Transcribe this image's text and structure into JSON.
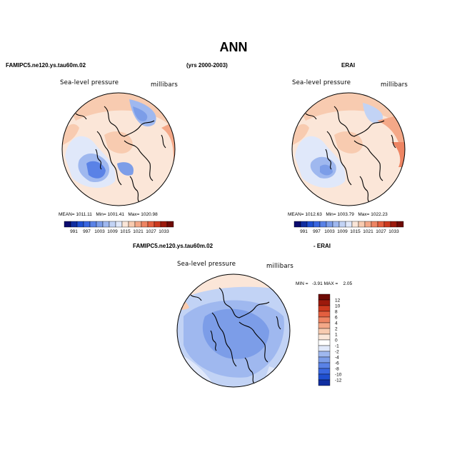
{
  "header": {
    "title": "ANN",
    "left_case": "FAMIPC5.ne120.ys.tau60m.02",
    "years": "(yrs 2000-2003)",
    "right_case": "ERAI",
    "bottom_left_case": "FAMIPC5.ne120.ys.tau60m.02",
    "bottom_right_case": "- ERAI"
  },
  "chart_data": [
    {
      "type": "heatmap",
      "projection": "polar-stereographic",
      "title": "FAMIPC5.ne120.ys.tau60m.02",
      "variable_label": "Sea-level pressure",
      "units_label": "millibars",
      "stats": {
        "mean_label": "MEAN=",
        "mean": "1011.11",
        "min_label": "Min=",
        "min": "1001.41",
        "max_label": "Max=",
        "max": "1020.98"
      },
      "colorbar": {
        "orientation": "horizontal",
        "tick_labels": [
          "991",
          "997",
          "1003",
          "1009",
          "1015",
          "1021",
          "1027",
          "1033"
        ],
        "levels": [
          988,
          991,
          994,
          997,
          1000,
          1003,
          1006,
          1009,
          1012,
          1015,
          1018,
          1021,
          1024,
          1027,
          1030,
          1033
        ],
        "colors": [
          "#0a0a6e",
          "#102ea0",
          "#1f4fd0",
          "#3a67e0",
          "#5a82e6",
          "#7c9de8",
          "#9fb8ef",
          "#c2d3f5",
          "#e0e8fa",
          "#fbe6d8",
          "#f8cbb0",
          "#f4a888",
          "#ee8563",
          "#e35f3f",
          "#cc3a1f",
          "#9c1a0c",
          "#6e0a05"
        ]
      }
    },
    {
      "type": "heatmap",
      "projection": "polar-stereographic",
      "title": "ERAI",
      "variable_label": "Sea-level pressure",
      "units_label": "millibars",
      "stats": {
        "mean_label": "MEAN=",
        "mean": "1012.63",
        "min_label": "Min=",
        "min": "1003.79",
        "max_label": "Max=",
        "max": "1022.23"
      },
      "colorbar": {
        "orientation": "horizontal",
        "tick_labels": [
          "991",
          "997",
          "1003",
          "1009",
          "1015",
          "1021",
          "1027",
          "1033"
        ],
        "levels": [
          988,
          991,
          994,
          997,
          1000,
          1003,
          1006,
          1009,
          1012,
          1015,
          1018,
          1021,
          1024,
          1027,
          1030,
          1033
        ],
        "colors": [
          "#0a0a6e",
          "#102ea0",
          "#1f4fd0",
          "#3a67e0",
          "#5a82e6",
          "#7c9de8",
          "#9fb8ef",
          "#c2d3f5",
          "#e0e8fa",
          "#fbe6d8",
          "#f8cbb0",
          "#f4a888",
          "#ee8563",
          "#e35f3f",
          "#cc3a1f",
          "#9c1a0c",
          "#6e0a05"
        ]
      }
    },
    {
      "type": "heatmap",
      "projection": "polar-stereographic",
      "title": "FAMIPC5.ne120.ys.tau60m.02 - ERAI",
      "variable_label": "Sea-level pressure",
      "units_label": "millibars",
      "stats": {
        "min_label": "MIN =",
        "min": "-3.91",
        "max_label": "MAX =",
        "max": "2.05"
      },
      "colorbar": {
        "orientation": "vertical",
        "tick_labels": [
          "12",
          "10",
          "8",
          "6",
          "4",
          "2",
          "1",
          "0",
          "-1",
          "-2",
          "-4",
          "-6",
          "-8",
          "-10",
          "-12"
        ],
        "colors": [
          "#6e0a05",
          "#9c1a0c",
          "#cc3a1f",
          "#e35f3f",
          "#ee8563",
          "#f4a888",
          "#f8cbb0",
          "#fbe6d8",
          "#ffffff",
          "#e0e8fa",
          "#9fb8ef",
          "#7c9de8",
          "#5a82e6",
          "#3a67e0",
          "#1f4fd0",
          "#102ea0"
        ]
      }
    }
  ]
}
